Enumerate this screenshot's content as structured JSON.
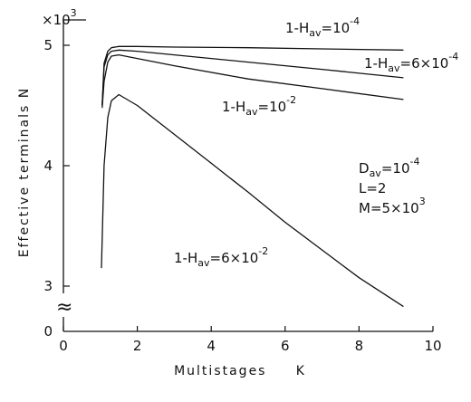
{
  "chart_data": {
    "type": "line",
    "xlabel": "Multistages     K",
    "ylabel": "Effective terminals N",
    "y_multiplier": {
      "base": "×10",
      "exp": "3"
    },
    "xlim": [
      0,
      10
    ],
    "ylim": [
      3,
      5
    ],
    "x_ticks": [
      0,
      2,
      4,
      6,
      8,
      10
    ],
    "x_tick_labels": [
      "0",
      "2",
      "4",
      "6",
      "8",
      "10"
    ],
    "y_ticks": [
      3,
      4,
      5
    ],
    "y_tick_labels": [
      "3",
      "4",
      "5"
    ],
    "y_zero_label": "0",
    "axis_break_symbol": "≈",
    "grid": false,
    "series": [
      {
        "name": "1-Hav=10^-4",
        "x": [
          1.05,
          1.1,
          1.2,
          1.3,
          1.5,
          2,
          3,
          5,
          7,
          9.2
        ],
        "y": [
          4.5,
          4.85,
          4.95,
          4.98,
          4.99,
          4.99,
          4.985,
          4.98,
          4.97,
          4.96
        ]
      },
      {
        "name": "1-Hav=6×10^-4",
        "x": [
          1.05,
          1.1,
          1.2,
          1.3,
          1.5,
          2,
          3,
          5,
          7,
          9.2
        ],
        "y": [
          4.5,
          4.82,
          4.92,
          4.95,
          4.96,
          4.95,
          4.92,
          4.86,
          4.8,
          4.73
        ]
      },
      {
        "name": "1-Hav=10^-2",
        "x": [
          1.05,
          1.1,
          1.2,
          1.3,
          1.5,
          2,
          3,
          5,
          7,
          9.2
        ],
        "y": [
          4.48,
          4.7,
          4.86,
          4.91,
          4.92,
          4.89,
          4.83,
          4.72,
          4.64,
          4.55
        ]
      },
      {
        "name": "1-Hav=6×10^-2",
        "x": [
          1.03,
          1.1,
          1.2,
          1.3,
          1.5,
          2,
          3,
          4,
          5,
          6,
          7,
          8,
          9.2
        ],
        "y": [
          3.15,
          4.0,
          4.4,
          4.54,
          4.59,
          4.5,
          4.26,
          4.02,
          3.78,
          3.53,
          3.3,
          3.07,
          2.83
        ]
      }
    ],
    "annotations": {
      "curve1": {
        "prefix": "1-H",
        "sub": "av",
        "mid": "=10",
        "exp": "-4"
      },
      "curve2": {
        "prefix": "1-H",
        "sub": "av",
        "mid": "=6×10",
        "exp": "-4"
      },
      "curve3": {
        "prefix": "1-H",
        "sub": "av",
        "mid": "=10",
        "exp": "-2"
      },
      "curve4": {
        "prefix": "1-H",
        "sub": "av",
        "mid": "=6×10",
        "exp": "-2"
      },
      "params": {
        "d_prefix": "D",
        "d_sub": "av",
        "d_mid": "=10",
        "d_exp": "-4",
        "l_line": "L=2",
        "m_prefix": "M=5×10",
        "m_exp": "3"
      }
    }
  }
}
